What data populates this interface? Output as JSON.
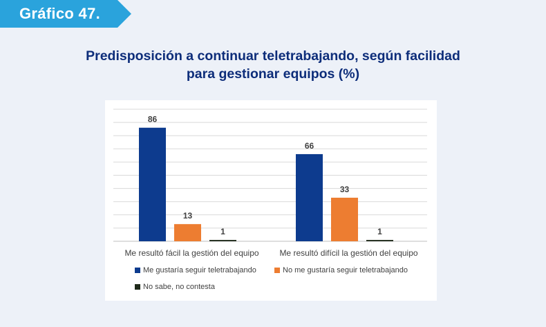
{
  "header": {
    "badge_label": "Gráfico 47.",
    "title_line1": "Predisposición a continuar teletrabajando, según facilidad",
    "title_line2": "para gestionar equipos (%)"
  },
  "colors": {
    "badge": "#2aa3dc",
    "title": "#0d2d7a",
    "series": [
      "#0d3b8e",
      "#ed7d31",
      "#1f2a1a"
    ]
  },
  "chart_data": {
    "type": "bar",
    "title": "Predisposición a continuar teletrabajando, según facilidad para gestionar equipos (%)",
    "categories": [
      "Me resultó fácil la gestión del equipo",
      "Me resultó difícil la gestión del equipo"
    ],
    "series": [
      {
        "name": "Me gustaría seguir teletrabajando",
        "values": [
          86,
          66
        ]
      },
      {
        "name": "No me gustaría seguir teletrabajando",
        "values": [
          13,
          33
        ]
      },
      {
        "name": "No sabe, no contesta",
        "values": [
          1,
          1
        ]
      }
    ],
    "ylim": [
      0,
      100
    ],
    "grid": true,
    "xlabel": "",
    "ylabel": "",
    "legend_position": "bottom"
  }
}
